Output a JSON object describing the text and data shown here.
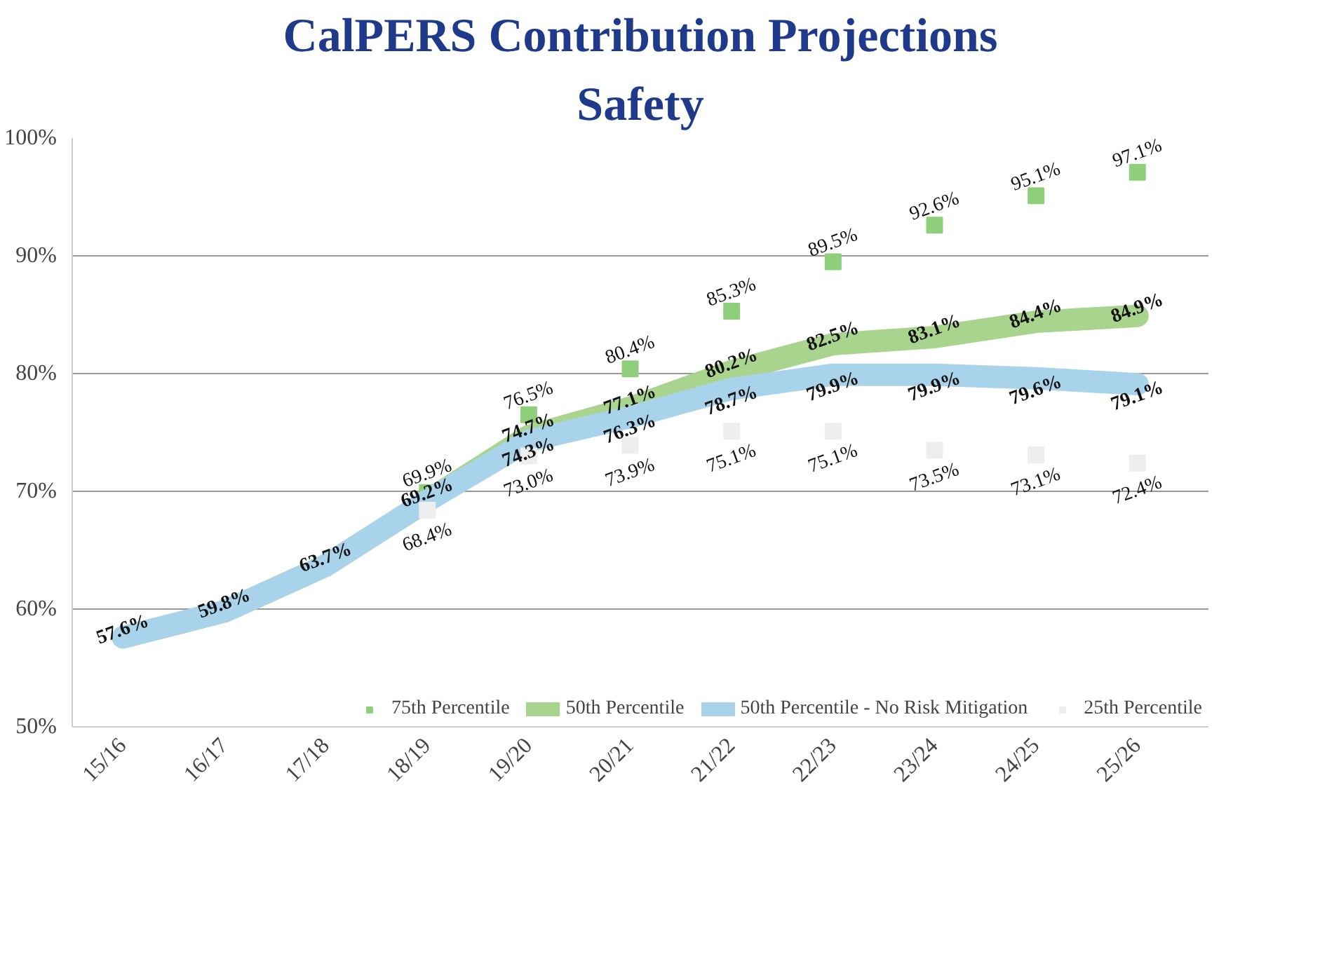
{
  "chart_data": {
    "type": "line",
    "title": "CalPERS Contribution Projections",
    "subtitle": "Safety",
    "categories": [
      "15/16",
      "16/17",
      "17/18",
      "18/19",
      "19/20",
      "20/21",
      "21/22",
      "22/23",
      "23/24",
      "24/25",
      "25/26"
    ],
    "series": [
      {
        "name": "75th Percentile",
        "type": "scatter",
        "marker": "square",
        "color": "#8fcf7c",
        "values": [
          null,
          null,
          null,
          69.9,
          76.5,
          80.4,
          85.3,
          89.5,
          92.6,
          95.1,
          97.1
        ],
        "value_labels": [
          null,
          null,
          null,
          "69.9%",
          "76.5%",
          "80.4%",
          "85.3%",
          "89.5%",
          "92.6%",
          "95.1%",
          "97.1%"
        ]
      },
      {
        "name": "50th Percentile",
        "color": "#a9d48e",
        "values": [
          57.6,
          59.8,
          63.7,
          69.2,
          74.7,
          77.1,
          80.2,
          82.5,
          83.1,
          84.4,
          84.9
        ],
        "value_labels": [
          "57.6%",
          "59.8%",
          "63.7%",
          "69.2%",
          "74.7%",
          "77.1%",
          "80.2%",
          "82.5%",
          "83.1%",
          "84.4%",
          "84.9%"
        ]
      },
      {
        "name": "50th Percentile - No Risk Mitigation",
        "color": "#a8d3ea",
        "values": [
          57.6,
          59.8,
          63.7,
          69.2,
          74.3,
          76.3,
          78.7,
          79.9,
          79.9,
          79.6,
          79.1
        ],
        "value_labels": [
          null,
          null,
          null,
          null,
          "74.3%",
          "76.3%",
          "78.7%",
          "79.9%",
          "79.9%",
          "79.6%",
          "79.1%"
        ]
      },
      {
        "name": "25th Percentile",
        "type": "scatter",
        "marker": "square",
        "color": "#eeeeee",
        "values": [
          null,
          null,
          null,
          68.4,
          73.0,
          73.9,
          75.1,
          75.1,
          73.5,
          73.1,
          72.4
        ],
        "value_labels": [
          null,
          null,
          null,
          "68.4%",
          "73.0%",
          "73.9%",
          "75.1%",
          "75.1%",
          "73.5%",
          "73.1%",
          "72.4%"
        ]
      }
    ],
    "ylim": [
      50,
      100
    ],
    "yticks": [
      {
        "value": 50,
        "label": "50%"
      },
      {
        "value": 60,
        "label": "60%"
      },
      {
        "value": 70,
        "label": "70%"
      },
      {
        "value": 80,
        "label": "80%"
      },
      {
        "value": 90,
        "label": "90%"
      },
      {
        "value": 100,
        "label": "100%"
      }
    ],
    "grid": "y",
    "legend": "bottom",
    "line_style": "solid"
  }
}
